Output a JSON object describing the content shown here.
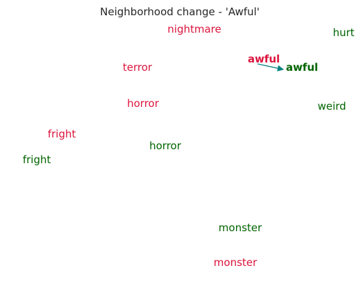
{
  "chart_data": {
    "type": "scatter",
    "title": "Neighborhood change - 'Awful'",
    "xlabel": "",
    "ylabel": "",
    "grid": false,
    "legend": "none",
    "series": [
      {
        "color": "#dc143c",
        "points": [
          {
            "label": "nightmare",
            "x": 280,
            "y": 42
          },
          {
            "label": "terror",
            "x": 198,
            "y": 97
          },
          {
            "label": "horror",
            "x": 206,
            "y": 149
          },
          {
            "label": "fright",
            "x": 89,
            "y": 193
          },
          {
            "label": "monster",
            "x": 339,
            "y": 378
          }
        ]
      },
      {
        "color": "#006400",
        "points": [
          {
            "label": "hurt",
            "x": 495,
            "y": 47
          },
          {
            "label": "weird",
            "x": 478,
            "y": 153
          },
          {
            "label": "horror",
            "x": 238,
            "y": 210
          },
          {
            "label": "fright",
            "x": 53,
            "y": 230
          },
          {
            "label": "monster",
            "x": 346,
            "y": 328
          }
        ]
      }
    ],
    "target": {
      "label": "awful",
      "from": {
        "x": 380,
        "y": 85,
        "color": "#dc143c"
      },
      "to": {
        "x": 435,
        "y": 97,
        "color": "#006400"
      },
      "arrow_color": "#008080"
    }
  }
}
